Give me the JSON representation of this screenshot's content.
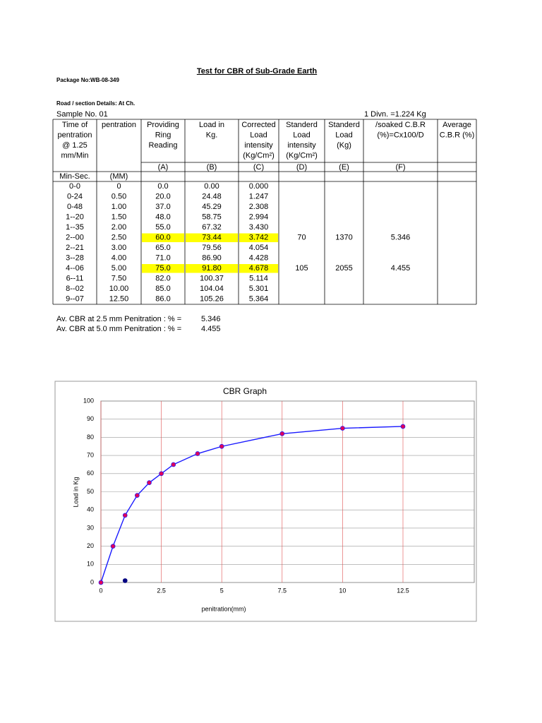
{
  "header": {
    "title": "Test  for CBR of Sub-Grade Earth",
    "package": "Package No:WB-08-349",
    "road": "Road / section Details: At Ch.",
    "sample": "Sample No. 01",
    "divn": "1 Divn. =1.224  Kg"
  },
  "table": {
    "header": [
      [
        "Time of",
        "pentration",
        "@ 1.25",
        "mm/Min"
      ],
      [
        "pentration"
      ],
      [
        "Providing",
        "Ring",
        "Reading"
      ],
      [
        "Load in",
        "Kg."
      ],
      [
        "Corrected",
        "Load",
        "intensity",
        "(Kg/Cm²)"
      ],
      [
        "Standerd",
        "Load",
        "intensity",
        "(Kg/Cm²)"
      ],
      [
        "Standerd",
        "Load",
        "(Kg)"
      ],
      [
        "/soaked C.B.R",
        "(%)=Cx100/D"
      ],
      [
        "Average",
        "C.B.R (%)"
      ]
    ],
    "letters": [
      null,
      null,
      "(A)",
      "(B)",
      "(C)",
      "(D)",
      "(E)",
      "(F)",
      null
    ],
    "units": [
      "Min-Sec.",
      "(MM)"
    ],
    "rows": [
      [
        "0-0",
        "0",
        "0.0",
        "0.00",
        "0.000",
        null,
        null,
        null
      ],
      [
        "0-24",
        "0.50",
        "20.0",
        "24.48",
        "1.247",
        null,
        null,
        null
      ],
      [
        "0-48",
        "1.00",
        "37.0",
        "45.29",
        "2.308",
        null,
        null,
        null
      ],
      [
        "1--20",
        "1.50",
        "48.0",
        "58.75",
        "2.994",
        null,
        null,
        null
      ],
      [
        "1--35",
        "2.00",
        "55.0",
        "67.32",
        "3.430",
        null,
        null,
        null
      ],
      [
        "2--00",
        "2.50",
        "60.0",
        "73.44",
        "3.742",
        "70",
        "1370",
        "5.346"
      ],
      [
        "2--21",
        "3.00",
        "65.0",
        "79.56",
        "4.054",
        null,
        null,
        null
      ],
      [
        "3--28",
        "4.00",
        "71.0",
        "86.90",
        "4.428",
        null,
        null,
        null
      ],
      [
        "4--06",
        "5.00",
        "75.0",
        "91.80",
        "4.678",
        "105",
        "2055",
        "4.455"
      ],
      [
        "6--11",
        "7.50",
        "82.0",
        "100.37",
        "5.114",
        null,
        null,
        null
      ],
      [
        "8--02",
        "10.00",
        "85.0",
        "104.04",
        "5.301",
        null,
        null,
        null
      ],
      [
        "9--07",
        "12.50",
        "86.0",
        "105.26",
        "5.364",
        null,
        null,
        null
      ]
    ],
    "highlight": {
      "rows": [
        5,
        8
      ],
      "color": "#ffff00"
    }
  },
  "summary": [
    [
      "Av. CBR at 2.5 mm Penitration : % =",
      "5.346"
    ],
    [
      "Av. CBR at 5.0 mm Penitration : % =",
      "4.455"
    ]
  ],
  "chart_data": {
    "type": "line",
    "title": "CBR Graph",
    "x_label": "penitration(mm)",
    "y_label": "Load in  Kg",
    "series": [
      {
        "color": "#1a1aff",
        "marker_color": "#e0005a",
        "x": [
          0,
          0.5,
          1,
          1.5,
          2,
          2.5,
          3,
          4,
          5,
          7.5,
          10,
          12.5
        ],
        "values": [
          0,
          20,
          37,
          48,
          55,
          60,
          65,
          71,
          75,
          82,
          85,
          86
        ]
      },
      {
        "color": "#000080",
        "marker_color": "#000080",
        "x": [
          1
        ],
        "values": [
          1
        ]
      }
    ],
    "xlim": [
      0,
      15.45
    ],
    "xticks": [
      0,
      2.5,
      5,
      7.5,
      10,
      12.5
    ],
    "ylim": [
      0,
      100
    ],
    "yticks": [
      0,
      10,
      20,
      30,
      40,
      50,
      60,
      70,
      80,
      90,
      100
    ],
    "grid": true
  }
}
